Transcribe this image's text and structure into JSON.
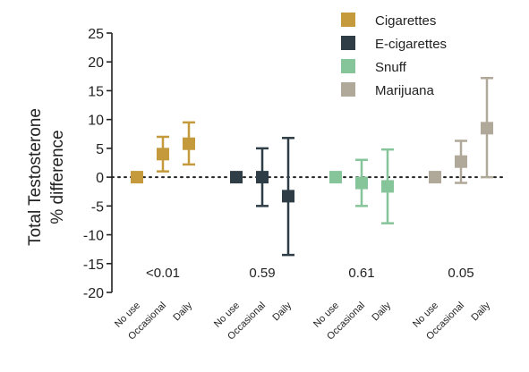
{
  "chart_data": {
    "type": "scatter",
    "ylabel_lines": [
      "Total Testosterone",
      "% difference"
    ],
    "ylim": [
      -20,
      25
    ],
    "yticks": [
      -20,
      -15,
      -10,
      -5,
      0,
      5,
      10,
      15,
      20,
      25
    ],
    "reference_line": 0,
    "legend_position": "top-right",
    "categories": [
      "No use",
      "Occasional",
      "Daily"
    ],
    "groups": [
      {
        "name": "Cigarettes",
        "color": "#c49a3c",
        "p_value": "<0.01",
        "points": [
          {
            "category": "No use",
            "value": 0,
            "ci": null
          },
          {
            "category": "Occasional",
            "value": 4,
            "ci": [
              1,
              7
            ]
          },
          {
            "category": "Daily",
            "value": 5.8,
            "ci": [
              2.2,
              9.5
            ]
          }
        ]
      },
      {
        "name": "E-cigarettes",
        "color": "#2f3e46",
        "p_value": "0.59",
        "points": [
          {
            "category": "No use",
            "value": 0,
            "ci": null
          },
          {
            "category": "Occasional",
            "value": 0,
            "ci": [
              -5,
              5
            ]
          },
          {
            "category": "Daily",
            "value": -3.3,
            "ci": [
              -13.5,
              6.8
            ]
          }
        ]
      },
      {
        "name": "Snuff",
        "color": "#86c49a",
        "p_value": "0.61",
        "points": [
          {
            "category": "No use",
            "value": 0,
            "ci": null
          },
          {
            "category": "Occasional",
            "value": -1,
            "ci": [
              -5,
              3
            ]
          },
          {
            "category": "Daily",
            "value": -1.6,
            "ci": [
              -8,
              4.8
            ]
          }
        ]
      },
      {
        "name": "Marijuana",
        "color": "#b0a898",
        "p_value": "0.05",
        "points": [
          {
            "category": "No use",
            "value": 0,
            "ci": null
          },
          {
            "category": "Occasional",
            "value": 2.7,
            "ci": [
              -1,
              6.3
            ]
          },
          {
            "category": "Daily",
            "value": 8.5,
            "ci": [
              0,
              17.2
            ]
          }
        ]
      }
    ]
  }
}
